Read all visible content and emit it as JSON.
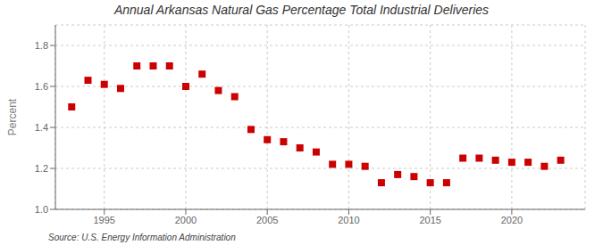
{
  "chart_data": {
    "type": "scatter",
    "title": "Annual Arkansas Natural Gas Percentage Total Industrial Deliveries",
    "ylabel": "Percent",
    "annotations": [
      "Source: U.S. Energy Information Administration"
    ],
    "x": [
      1993,
      1994,
      1995,
      1996,
      1997,
      1998,
      1999,
      2000,
      2001,
      2002,
      2003,
      2004,
      2005,
      2006,
      2007,
      2008,
      2009,
      2010,
      2011,
      2012,
      2013,
      2014,
      2015,
      2016,
      2017,
      2018,
      2019,
      2020,
      2021,
      2022,
      2023
    ],
    "values": [
      1.5,
      1.63,
      1.61,
      1.59,
      1.7,
      1.7,
      1.7,
      1.6,
      1.66,
      1.58,
      1.55,
      1.39,
      1.34,
      1.33,
      1.3,
      1.28,
      1.22,
      1.22,
      1.21,
      1.13,
      1.17,
      1.16,
      1.13,
      1.13,
      1.25,
      1.25,
      1.24,
      1.23,
      1.23,
      1.21,
      1.24
    ],
    "color": "#cc0000",
    "marker": "square",
    "xlim": [
      1992,
      2024.5
    ],
    "xticks": [
      1995,
      2000,
      2005,
      2010,
      2015,
      2020
    ],
    "ylim": [
      1.0,
      1.9
    ],
    "yticks": [
      {
        "value": 1.0,
        "label": "1.0"
      },
      1.2,
      1.4,
      1.6,
      1.8
    ],
    "grid": true
  }
}
